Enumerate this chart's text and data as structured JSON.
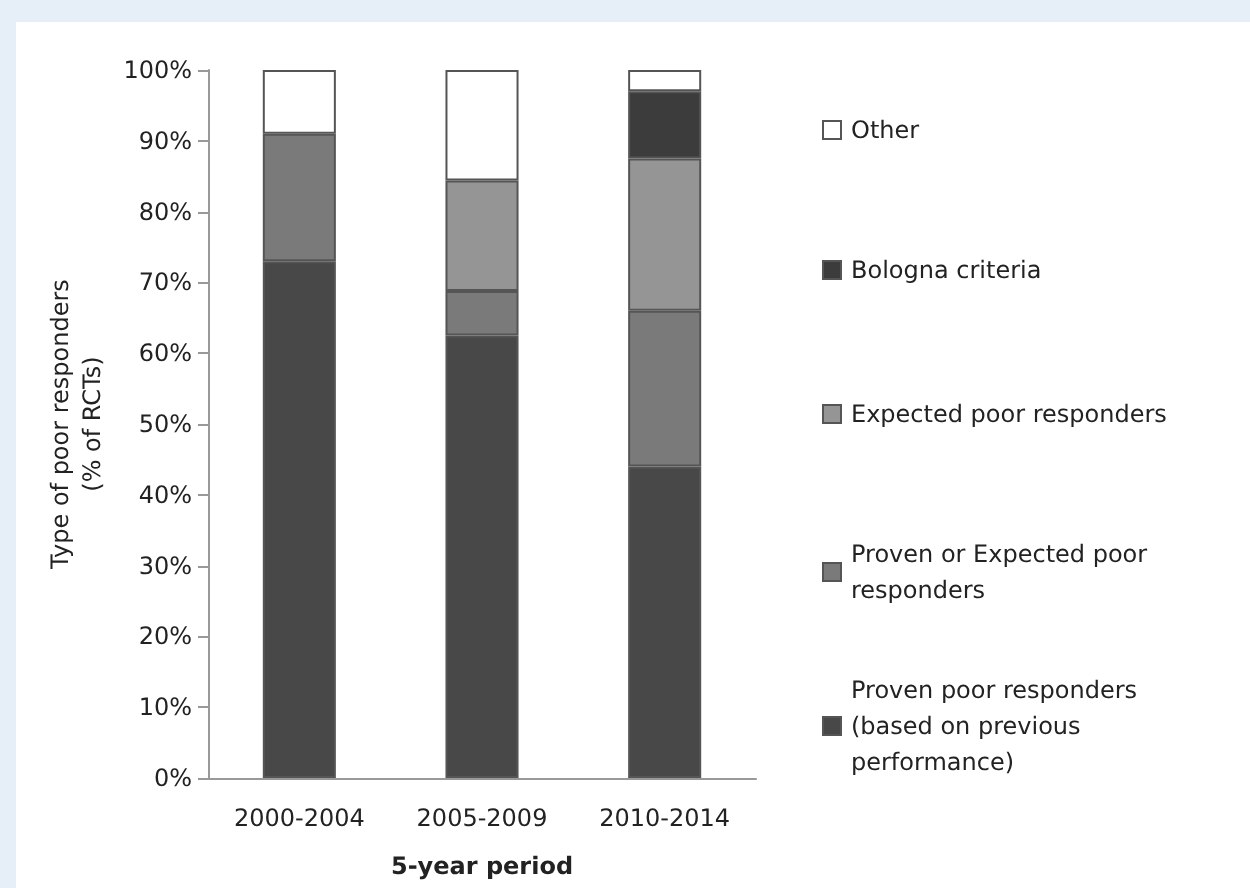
{
  "chart_data": {
    "type": "bar",
    "stacked": true,
    "xlabel": "5-year period",
    "ylabel": "Type of poor responders\n(% of RCTs)",
    "categories": [
      "2000-2004",
      "2005-2009",
      "2010-2014"
    ],
    "series": [
      {
        "name": "Proven poor responders (based on previous performance)",
        "color": "#484848",
        "values": [
          73,
          62.5,
          44
        ]
      },
      {
        "name": "Proven or Expected poor responders",
        "color": "#7a7a7a",
        "values": [
          18,
          6.3,
          22
        ]
      },
      {
        "name": "Expected poor responders",
        "color": "#959595",
        "values": [
          0,
          15.6,
          21.5
        ]
      },
      {
        "name": "Bologna criteria",
        "color": "#3c3c3c",
        "values": [
          0,
          0,
          9.5
        ]
      },
      {
        "name": "Other",
        "color": "#ffffff",
        "values": [
          9,
          15.6,
          3
        ]
      }
    ],
    "ylim": [
      0,
      100
    ],
    "yticks": [
      {
        "value": 0,
        "label": "0%"
      },
      {
        "value": 10,
        "label": "10%"
      },
      {
        "value": 20,
        "label": "20%"
      },
      {
        "value": 30,
        "label": "30%"
      },
      {
        "value": 40,
        "label": "40%"
      },
      {
        "value": 50,
        "label": "50%"
      },
      {
        "value": 60,
        "label": "60%"
      },
      {
        "value": 70,
        "label": "70%"
      },
      {
        "value": 80,
        "label": "80%"
      },
      {
        "value": 90,
        "label": "90%"
      },
      {
        "value": 100,
        "label": "100%"
      }
    ],
    "grid": false,
    "legend": "right"
  }
}
